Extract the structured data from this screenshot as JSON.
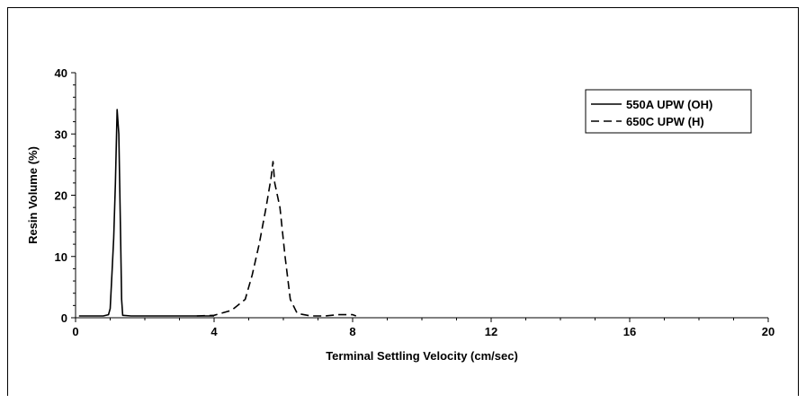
{
  "chart_data": {
    "type": "line",
    "title": "",
    "xlabel": "Terminal Settling Velocity (cm/sec)",
    "ylabel": "Resin Volume (%)",
    "xlim": [
      0,
      20
    ],
    "ylim": [
      0,
      40
    ],
    "x_ticks": [
      "0",
      "4",
      "8",
      "12",
      "16",
      "20"
    ],
    "y_ticks": [
      "0",
      "10",
      "20",
      "30",
      "40"
    ],
    "grid": false,
    "legend_position": "top-right",
    "series": [
      {
        "name": "550A UPW (OH)",
        "style": "solid",
        "color": "#000000",
        "points": [
          [
            0.1,
            0.3
          ],
          [
            0.5,
            0.3
          ],
          [
            0.8,
            0.3
          ],
          [
            0.95,
            0.5
          ],
          [
            1.0,
            1.5
          ],
          [
            1.05,
            7
          ],
          [
            1.1,
            13
          ],
          [
            1.15,
            22
          ],
          [
            1.2,
            34
          ],
          [
            1.25,
            30
          ],
          [
            1.3,
            13
          ],
          [
            1.33,
            3
          ],
          [
            1.36,
            0.4
          ],
          [
            1.6,
            0.3
          ],
          [
            2.5,
            0.3
          ],
          [
            3.5,
            0.3
          ],
          [
            4.0,
            0.3
          ]
        ]
      },
      {
        "name": "650C UPW (H)",
        "style": "dashed",
        "color": "#000000",
        "points": [
          [
            3.5,
            0.3
          ],
          [
            4.0,
            0.4
          ],
          [
            4.5,
            1.2
          ],
          [
            4.9,
            3
          ],
          [
            5.1,
            7
          ],
          [
            5.3,
            12
          ],
          [
            5.5,
            18
          ],
          [
            5.65,
            23
          ],
          [
            5.7,
            25.5
          ],
          [
            5.75,
            22
          ],
          [
            5.9,
            18
          ],
          [
            6.05,
            10
          ],
          [
            6.2,
            3
          ],
          [
            6.4,
            0.7
          ],
          [
            6.8,
            0.3
          ],
          [
            7.2,
            0.3
          ],
          [
            7.6,
            0.5
          ],
          [
            8.0,
            0.5
          ],
          [
            8.1,
            0.3
          ]
        ]
      }
    ]
  }
}
